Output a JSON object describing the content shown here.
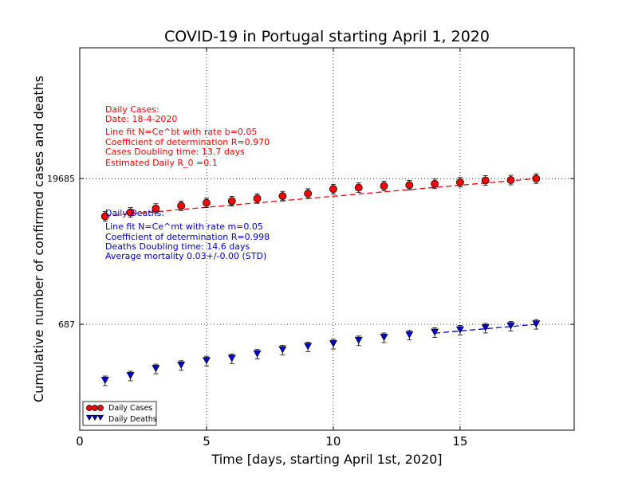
{
  "chart_data": {
    "type": "scatter",
    "title": "COVID-19 in Portugal starting April 1, 2020",
    "xlabel": "Time [days, starting April 1st, 2020]",
    "ylabel": "Cumulative number of confirmed cases and deaths",
    "xlim": [
      0,
      19.5
    ],
    "yscale": "log",
    "ylim": [
      60,
      400000
    ],
    "xticks": [
      0,
      5,
      10,
      15
    ],
    "xtick_labels": [
      "0",
      "5",
      "10",
      "15"
    ],
    "yticks": [
      19685,
      687
    ],
    "ytick_labels": [
      "19685",
      "687"
    ],
    "grid": "dotted at ticks",
    "legend_position": "lower-left",
    "series": [
      {
        "name": "Daily Cases",
        "marker": "circle",
        "color": "#ff0000",
        "x": [
          1,
          2,
          3,
          4,
          5,
          6,
          7,
          8,
          9,
          10,
          11,
          12,
          13,
          14,
          15,
          16,
          17,
          18
        ],
        "y": [
          8251,
          9034,
          9886,
          10524,
          11278,
          11730,
          12442,
          13141,
          13956,
          15472,
          15987,
          16585,
          16934,
          17448,
          18091,
          18841,
          19022,
          19685
        ],
        "fit": {
          "style": "dashed",
          "x": [
            1,
            18
          ],
          "y": [
            8300,
            19685
          ]
        }
      },
      {
        "name": "Daily Deaths",
        "marker": "triangle-down",
        "color": "#0000cc",
        "x": [
          1,
          2,
          3,
          4,
          5,
          6,
          7,
          8,
          9,
          10,
          11,
          12,
          13,
          14,
          15,
          16,
          17,
          18
        ],
        "y": [
          187,
          209,
          246,
          266,
          295,
          311,
          345,
          380,
          409,
          435,
          470,
          504,
          535,
          567,
          599,
          629,
          657,
          687
        ],
        "fit": {
          "style": "dashed",
          "x": [
            14,
            18
          ],
          "y": [
            560,
            687
          ]
        }
      }
    ],
    "annotations": {
      "cases": [
        "Daily Cases:",
        "Date: 18-4-2020",
        "Line fit N=Ce^bt with rate b=0.05",
        "Coefficient of determination R=0.970",
        "Cases Doubling time: 13.7 days",
        "Estimated Daily R_0 =0.1"
      ],
      "deaths": [
        "Daily Deaths:",
        "Line fit N=Ce^mt with rate m=0.05",
        "Coefficient of determination R=0.998",
        "Deaths Doubling time: 14.6 days",
        "Average mortality 0.03+/-0.00 (STD)"
      ]
    }
  }
}
